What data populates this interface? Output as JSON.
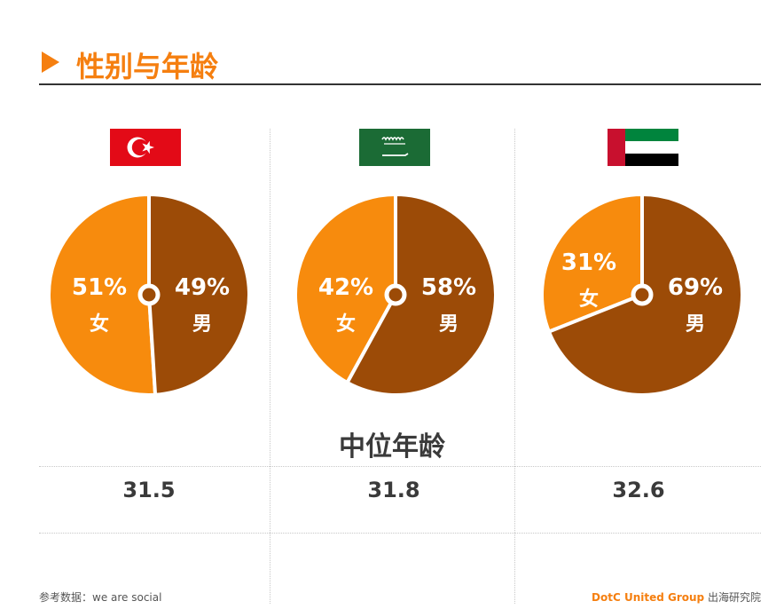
{
  "title": "性别与年龄",
  "median_title": "中位年龄",
  "source": "参考数据：we are social",
  "brand": {
    "name": "DotC United Group",
    "suffix": "出海研究院"
  },
  "colors": {
    "female": "#f78b0d",
    "male": "#9c4b07",
    "accent": "#f57f10"
  },
  "chart_data": [
    {
      "type": "pie",
      "flag": "turkey-flag-icon",
      "slices": [
        {
          "label": "女",
          "value": 51,
          "text": "51%"
        },
        {
          "label": "男",
          "value": 49,
          "text": "49%"
        }
      ],
      "median_age": "31.5"
    },
    {
      "type": "pie",
      "flag": "saudi-arabia-flag-icon",
      "slices": [
        {
          "label": "女",
          "value": 42,
          "text": "42%"
        },
        {
          "label": "男",
          "value": 58,
          "text": "58%"
        }
      ],
      "median_age": "31.8"
    },
    {
      "type": "pie",
      "flag": "uae-flag-icon",
      "slices": [
        {
          "label": "女",
          "value": 31,
          "text": "31%"
        },
        {
          "label": "男",
          "value": 69,
          "text": "69%"
        }
      ],
      "median_age": "32.6"
    }
  ]
}
